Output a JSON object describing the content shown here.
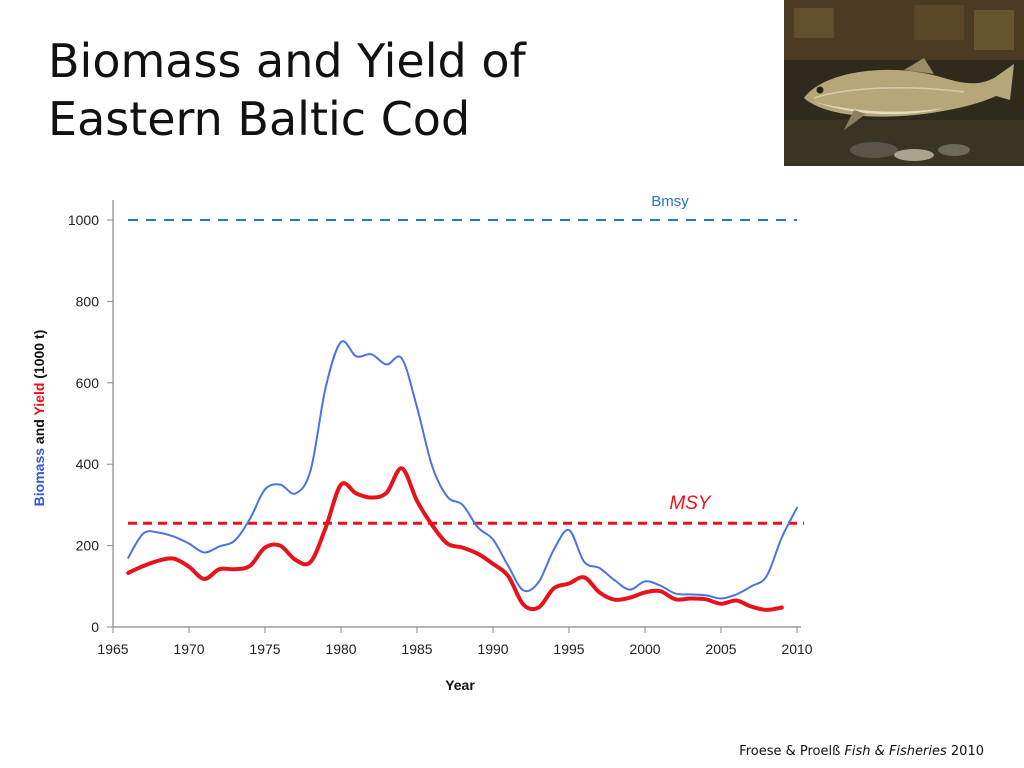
{
  "title": {
    "line1": "Biomass and Yield of",
    "line2": "Eastern Baltic Cod"
  },
  "photo": {
    "subject": "cod-fish-photo"
  },
  "citation": {
    "authors": "Froese & Proelß ",
    "journal": "Fish & Fisheries",
    "year": " 2010"
  },
  "colors": {
    "biomass": "#4a73e0",
    "yield": "#e8121a",
    "bmsy": "#1f78c8",
    "axis": "#888888"
  },
  "chart_data": {
    "type": "line",
    "xlabel": "Year",
    "ylabel_parts": [
      {
        "text": "Biomass",
        "color": "#3358d6"
      },
      {
        "text": " and ",
        "color": "#111111"
      },
      {
        "text": "Yield",
        "color": "#e8121a"
      },
      {
        "text": " (1000 t)",
        "color": "#111111"
      }
    ],
    "xlim": [
      1965,
      2010
    ],
    "ylim": [
      0,
      1000
    ],
    "xticks": [
      1965,
      1970,
      1975,
      1980,
      1985,
      1990,
      1995,
      2000,
      2005,
      2010
    ],
    "yticks": [
      0,
      200,
      400,
      600,
      800,
      1000
    ],
    "grid": false,
    "reference_lines": [
      {
        "label": "Bmsy",
        "value": 1000,
        "color": "#1f78c8",
        "italic": false
      },
      {
        "label": "MSY",
        "value": 255,
        "color": "#e8121a",
        "italic": true
      }
    ],
    "series": [
      {
        "key": "biomass",
        "color": "#4a73e0",
        "x": [
          1966,
          1967,
          1968,
          1969,
          1970,
          1971,
          1972,
          1973,
          1974,
          1975,
          1976,
          1977,
          1978,
          1979,
          1980,
          1981,
          1982,
          1983,
          1984,
          1985,
          1986,
          1987,
          1988,
          1989,
          1990,
          1991,
          1992,
          1993,
          1994,
          1995,
          1996,
          1997,
          1998,
          1999,
          2000,
          2001,
          2002,
          2003,
          2004,
          2005,
          2006,
          2007,
          2008,
          2009,
          2010
        ],
        "y": [
          170,
          230,
          232,
          222,
          205,
          183,
          198,
          212,
          265,
          338,
          350,
          328,
          385,
          590,
          700,
          665,
          670,
          645,
          660,
          540,
          395,
          320,
          300,
          245,
          215,
          150,
          90,
          110,
          190,
          238,
          160,
          145,
          115,
          92,
          112,
          102,
          82,
          80,
          78,
          70,
          80,
          100,
          125,
          220,
          293
        ]
      },
      {
        "key": "yield",
        "color": "#e8121a",
        "x": [
          1966,
          1967,
          1968,
          1969,
          1970,
          1971,
          1972,
          1973,
          1974,
          1975,
          1976,
          1977,
          1978,
          1979,
          1980,
          1981,
          1982,
          1983,
          1984,
          1985,
          1986,
          1987,
          1988,
          1989,
          1990,
          1991,
          1992,
          1993,
          1994,
          1995,
          1996,
          1997,
          1998,
          1999,
          2000,
          2001,
          2002,
          2003,
          2004,
          2005,
          2006,
          2007,
          2008,
          2009
        ],
        "y": [
          133,
          150,
          163,
          168,
          148,
          118,
          142,
          142,
          150,
          195,
          200,
          165,
          160,
          245,
          350,
          328,
          318,
          330,
          390,
          310,
          250,
          205,
          195,
          180,
          155,
          125,
          55,
          48,
          95,
          107,
          122,
          85,
          67,
          72,
          85,
          88,
          68,
          70,
          68,
          57,
          65,
          50,
          42,
          48
        ]
      }
    ]
  }
}
